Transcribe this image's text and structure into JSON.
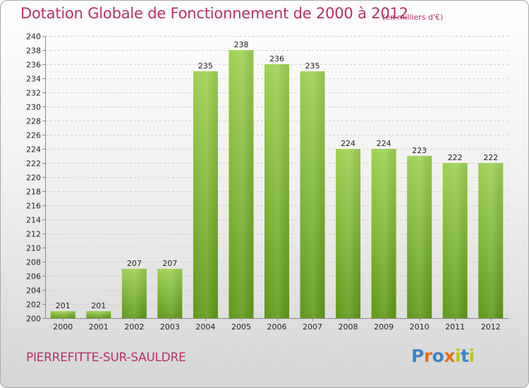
{
  "header": {
    "title": "Dotation Globale de Fonctionnement de 2000 à 2012",
    "unit": "(en milliers d'€)"
  },
  "footer": {
    "commune": "PIERREFITTE-SUR-SAULDRE",
    "logo": "Proxiti"
  },
  "colors": {
    "title": "#b5306a",
    "bar_top": "#9ed153",
    "bar_bottom": "#5f9918",
    "logo_letters": [
      "#3d86c9",
      "#e66f1f",
      "#3d86c9",
      "#e66f1f",
      "#b8cc1a",
      "#3d86c9",
      "#b8cc1a"
    ]
  },
  "chart_data": {
    "type": "bar",
    "title": "Dotation Globale de Fonctionnement de 2000 à 2012",
    "categories": [
      "2000",
      "2001",
      "2002",
      "2003",
      "2004",
      "2005",
      "2006",
      "2007",
      "2008",
      "2009",
      "2010",
      "2011",
      "2012"
    ],
    "values": [
      201,
      201,
      207,
      207,
      235,
      238,
      236,
      235,
      224,
      224,
      223,
      222,
      222
    ],
    "yticks": [
      200,
      202,
      204,
      206,
      208,
      210,
      212,
      214,
      216,
      218,
      220,
      222,
      224,
      226,
      228,
      230,
      232,
      234,
      236,
      238,
      240
    ],
    "ylim": [
      200,
      240
    ],
    "grid": true,
    "legend": "none"
  }
}
